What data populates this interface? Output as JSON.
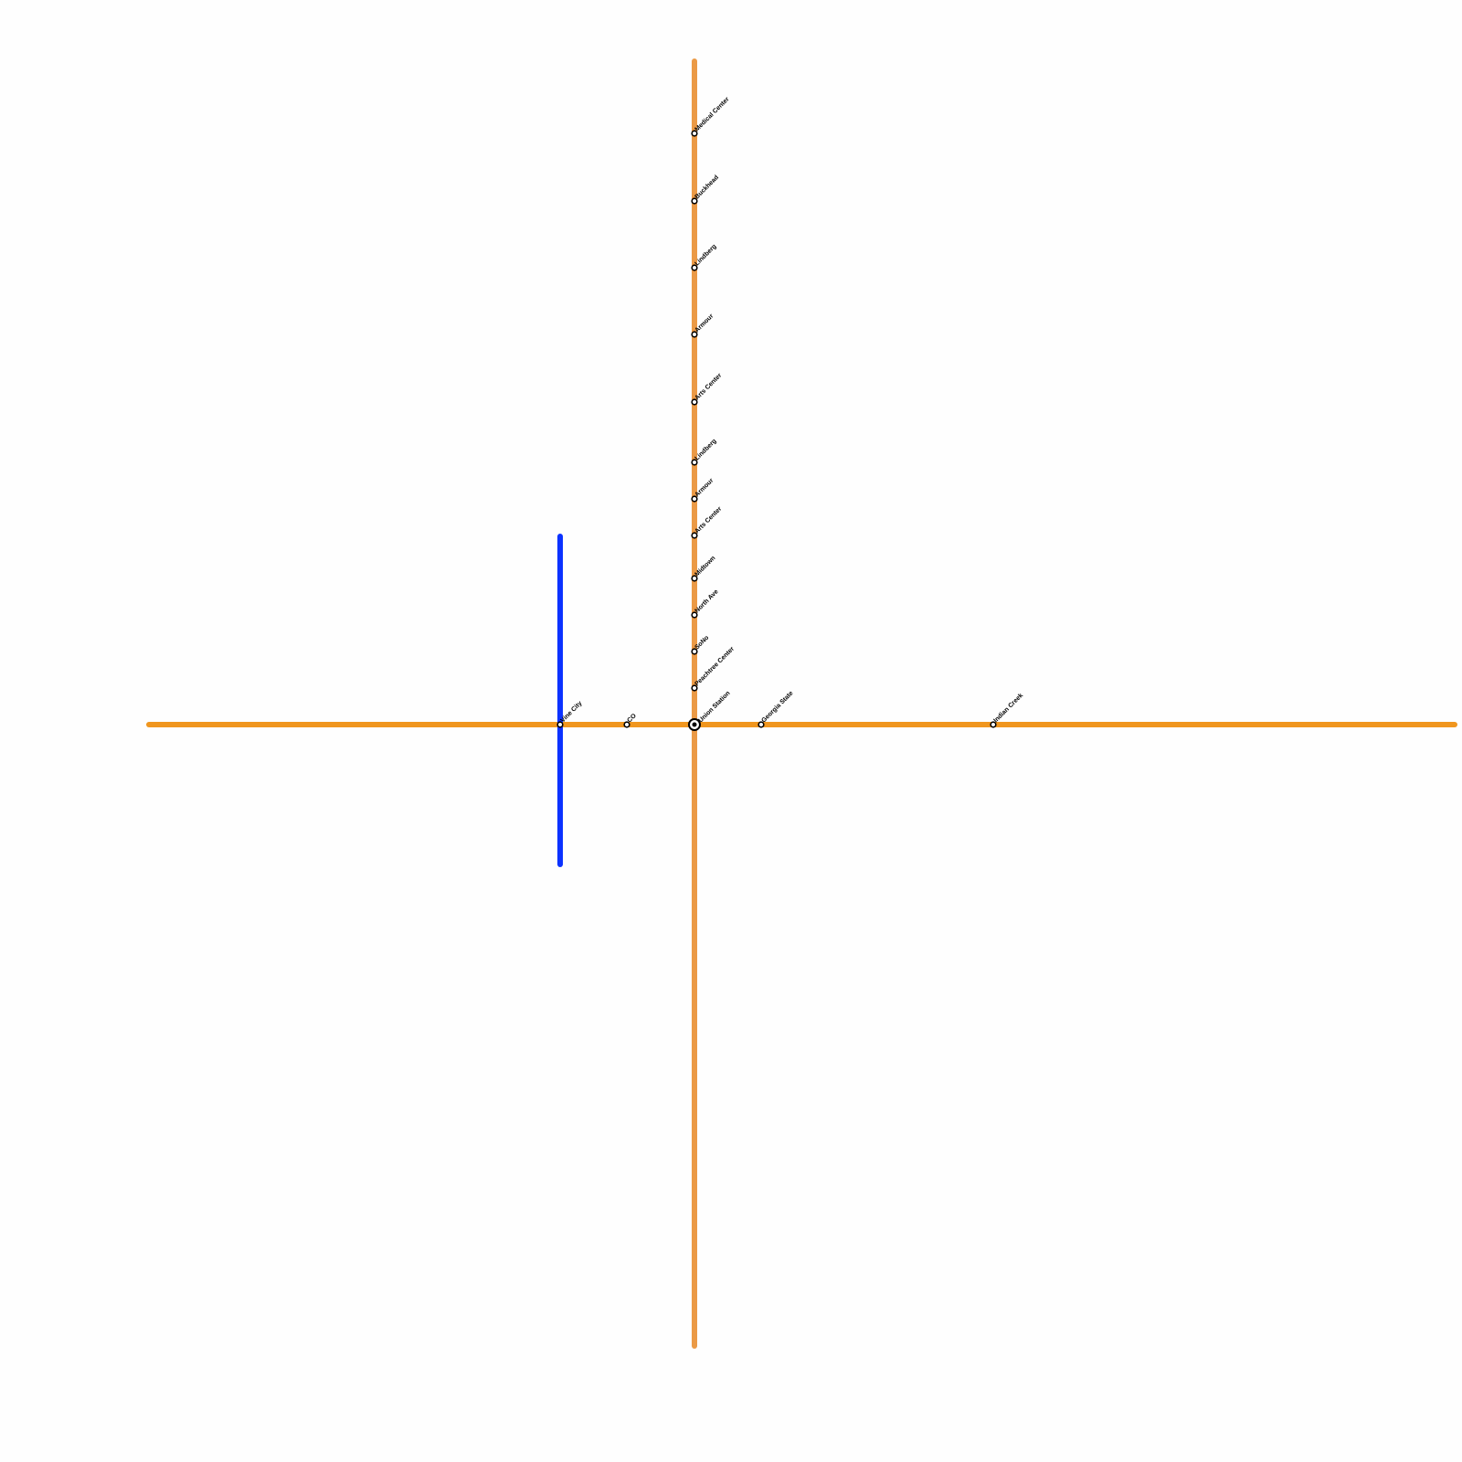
{
  "stations": [
    {
      "name": "Medical Center"
    },
    {
      "name": "Buckhead"
    },
    {
      "name": "Lindberg"
    },
    {
      "name": "Armour"
    },
    {
      "name": "Arts Center"
    },
    {
      "name": "Lindberg"
    },
    {
      "name": "Armour"
    },
    {
      "name": "Arts Center"
    },
    {
      "name": "Midtown"
    },
    {
      "name": "North Ave"
    },
    {
      "name": "SoNo"
    },
    {
      "name": "Peachtree Center"
    },
    {
      "name": "Union Station"
    },
    {
      "name": "Vine City"
    },
    {
      "name": "CO"
    },
    {
      "name": "Georgia State"
    },
    {
      "name": "Indian Creek"
    }
  ]
}
